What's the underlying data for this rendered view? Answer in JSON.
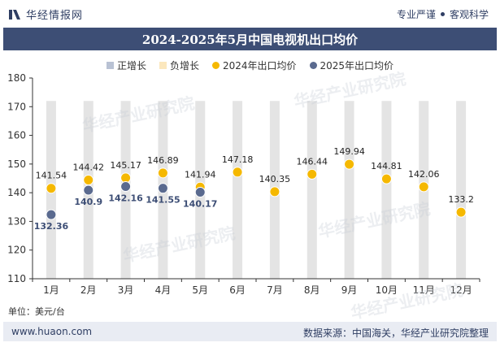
{
  "header": {
    "brand": "华经情报网",
    "tag1": "专业严谨",
    "tag2": "客观科学"
  },
  "watermark": {
    "text": "华经产业研究院",
    "url": "www.huaon.com"
  },
  "chart_data": {
    "type": "scatter",
    "title": "2024-2025年5月中国电视机出口均价",
    "categories": [
      "1月",
      "2月",
      "3月",
      "4月",
      "5月",
      "6月",
      "7月",
      "8月",
      "9月",
      "10月",
      "11月",
      "12月"
    ],
    "legend": [
      "正增长",
      "负增长",
      "2024年出口均价",
      "2025年出口均价"
    ],
    "legend_colors": [
      "#b9c2d4",
      "#fbe7bd",
      "#f5b800",
      "#5a6a8f"
    ],
    "band_color": "#e4e4e4",
    "series": [
      {
        "name": "2024年出口均价",
        "color": "#f5b800",
        "values": [
          141.54,
          144.42,
          145.17,
          146.89,
          141.94,
          147.18,
          140.35,
          146.44,
          149.94,
          144.81,
          142.06,
          133.2
        ]
      },
      {
        "name": "2025年出口均价",
        "color": "#5a6a8f",
        "values": [
          132.36,
          140.9,
          142.16,
          141.55,
          140.17
        ]
      }
    ],
    "ylim": [
      110,
      180
    ],
    "yticks": [
      110,
      120,
      130,
      140,
      150,
      160,
      170,
      180
    ],
    "grid": false,
    "legend_position": "top"
  },
  "unit": "单位：美元/台",
  "footer": {
    "left": "www.huaon.com",
    "right": "数据来源：中国海关，华经产业研究院整理"
  }
}
